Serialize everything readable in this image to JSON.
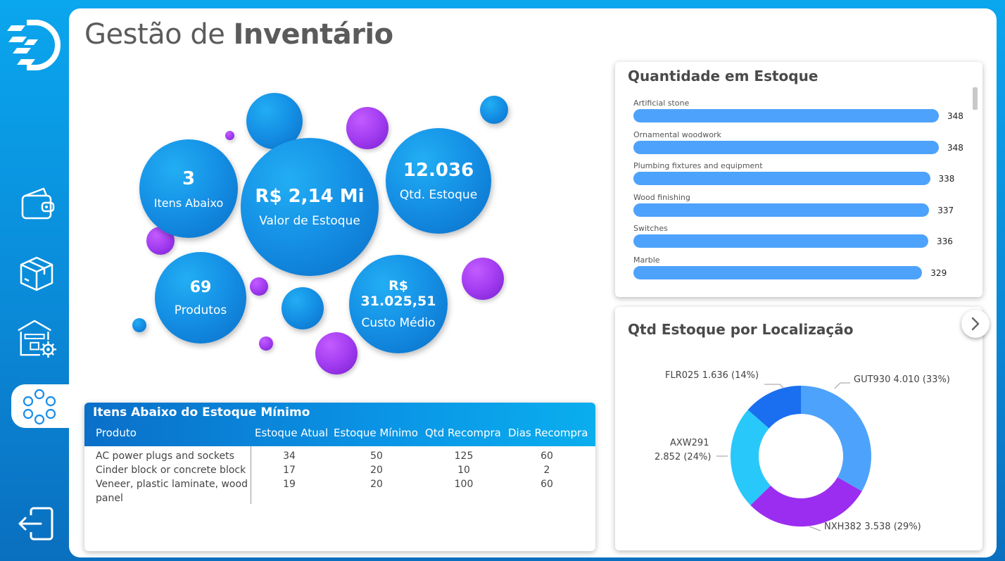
{
  "header": {
    "title_light": "Gestão de",
    "title_bold": "Inventário"
  },
  "sidebar": {
    "items": [
      {
        "icon": "wallet-icon"
      },
      {
        "icon": "box-icon"
      },
      {
        "icon": "warehouse-gear-icon"
      },
      {
        "icon": "circles-icon",
        "active": true
      }
    ],
    "exit_icon": "logout-icon"
  },
  "kpis": {
    "itens_abaixo": {
      "value": "3",
      "label": "Itens Abaixo"
    },
    "valor_estoque": {
      "value": "R$ 2,14 Mi",
      "label": "Valor de Estoque"
    },
    "qtd_estoque": {
      "value": "12.036",
      "label": "Qtd. Estoque"
    },
    "produtos": {
      "value": "69",
      "label": "Produtos"
    },
    "custo_medio": {
      "value": "R$ 31.025,51",
      "label": "Custo Médio"
    }
  },
  "quantidade_chart": {
    "title": "Quantidade em Estoque",
    "max": 348,
    "items": [
      {
        "label": "Artificial stone",
        "value": 348
      },
      {
        "label": "Ornamental woodwork",
        "value": 348
      },
      {
        "label": "Plumbing fixtures and equipment",
        "value": 338
      },
      {
        "label": "Wood finishing",
        "value": 337
      },
      {
        "label": "Switches",
        "value": 336
      },
      {
        "label": "Marble",
        "value": 329
      }
    ]
  },
  "table": {
    "title": "Itens Abaixo do Estoque Mínimo",
    "headers": [
      "Produto",
      "Estoque Atual",
      "Estoque Mínimo",
      "Qtd Recompra",
      "Dias Recompra"
    ],
    "rows": [
      {
        "produto": "AC power plugs and sockets",
        "produto2": "",
        "atual": "34",
        "minimo": "50",
        "recompra": "125",
        "dias": "60"
      },
      {
        "produto": "Cinder block or concrete block",
        "produto2": "",
        "atual": "17",
        "minimo": "20",
        "recompra": "10",
        "dias": "2"
      },
      {
        "produto": "Veneer, plastic laminate, wood",
        "produto2": "panel",
        "atual": "19",
        "minimo": "20",
        "recompra": "100",
        "dias": "60"
      }
    ]
  },
  "donut": {
    "title": "Qtd Estoque por Localização",
    "slices": [
      {
        "name": "GUT930",
        "value": 4010,
        "label": "GUT930 4.010 (33%)",
        "color": "#4da2fb"
      },
      {
        "name": "NXH382",
        "value": 3538,
        "label": "NXH382 3.538 (29%)",
        "color": "#9b2df0"
      },
      {
        "name": "AXW291",
        "value": 2852,
        "label1": "AXW291",
        "label2": "2.852 (24%)",
        "color": "#29c8fb"
      },
      {
        "name": "FLR025",
        "value": 1636,
        "label": "FLR025 1.636 (14%)",
        "color": "#1a6ef0"
      }
    ]
  },
  "colors": {
    "blue": "#0a8ad8",
    "bar": "#4da2fb",
    "purple": "#9b2df0"
  }
}
